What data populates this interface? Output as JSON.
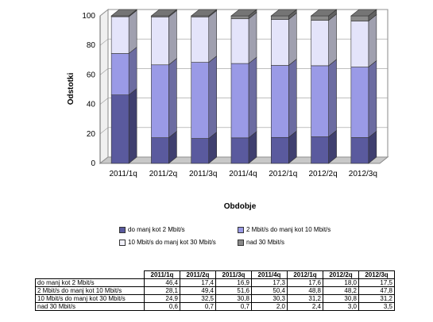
{
  "chart_data": {
    "type": "bar",
    "stacked": true,
    "ylabel": "Odstotki",
    "xlabel": "Obdobje",
    "ylim": [
      0,
      100
    ],
    "yticks": [
      "0",
      "20",
      "40",
      "60",
      "80",
      "100"
    ],
    "categories": [
      "2011/1q",
      "2011/2q",
      "2011/3q",
      "2011/4q",
      "2012/1q",
      "2012/2q",
      "2012/3q"
    ],
    "series": [
      {
        "name": "do manj kot 2 Mbit/s",
        "color": "#5a5a9e",
        "values": [
          46.4,
          17.4,
          16.9,
          17.3,
          17.6,
          18.0,
          17.5
        ]
      },
      {
        "name": "2 Mbit/s do manj kot 10 Mbit/s",
        "color": "#9a9ae6",
        "values": [
          28.1,
          49.4,
          51.6,
          50.4,
          48.8,
          48.2,
          47.8
        ]
      },
      {
        "name": "10 Mbit/s do manj kot 30 Mbit/s",
        "color": "#e4e4fa",
        "values": [
          24.9,
          32.5,
          30.8,
          30.3,
          31.2,
          30.8,
          31.2
        ]
      },
      {
        "name": "nad 30 Mbit/s",
        "color": "#8a8a8a",
        "values": [
          0.6,
          0.7,
          0.7,
          2.0,
          2.4,
          3.0,
          3.5
        ]
      }
    ],
    "table": {
      "header": [
        "2011/1q",
        "2011/2q",
        "2011/3q",
        "2011/4q",
        "2012/1q",
        "2012/2q",
        "2012/3q"
      ],
      "rows": [
        {
          "label": "do manj kot 2 Mbit/s",
          "cells": [
            "46,4",
            "17,4",
            "16,9",
            "17,3",
            "17,6",
            "18,0",
            "17,5"
          ]
        },
        {
          "label": "2 Mbit/s do manj kot 10 Mbit/s",
          "cells": [
            "28,1",
            "49,4",
            "51,6",
            "50,4",
            "48,8",
            "48,2",
            "47,8"
          ]
        },
        {
          "label": "10 Mbit/s do manj kot 30 Mbit/s",
          "cells": [
            "24,9",
            "32,5",
            "30,8",
            "30,3",
            "31,2",
            "30,8",
            "31,2"
          ]
        },
        {
          "label": "nad 30 Mbit/s",
          "cells": [
            "0,6",
            "0,7",
            "0,7",
            "2,0",
            "2,4",
            "3,0",
            "3,5"
          ]
        }
      ]
    }
  },
  "legend": [
    {
      "label": "do manj kot 2 Mbit/s",
      "color": "#5a5a9e"
    },
    {
      "label": "2 Mbit/s do manj kot 10 Mbit/s",
      "color": "#9a9ae6"
    },
    {
      "label": "10 Mbit/s do manj kot 30 Mbit/s",
      "color": "#f2f2fc"
    },
    {
      "label": "nad 30 Mbit/s",
      "color": "#8a8a8a"
    }
  ]
}
